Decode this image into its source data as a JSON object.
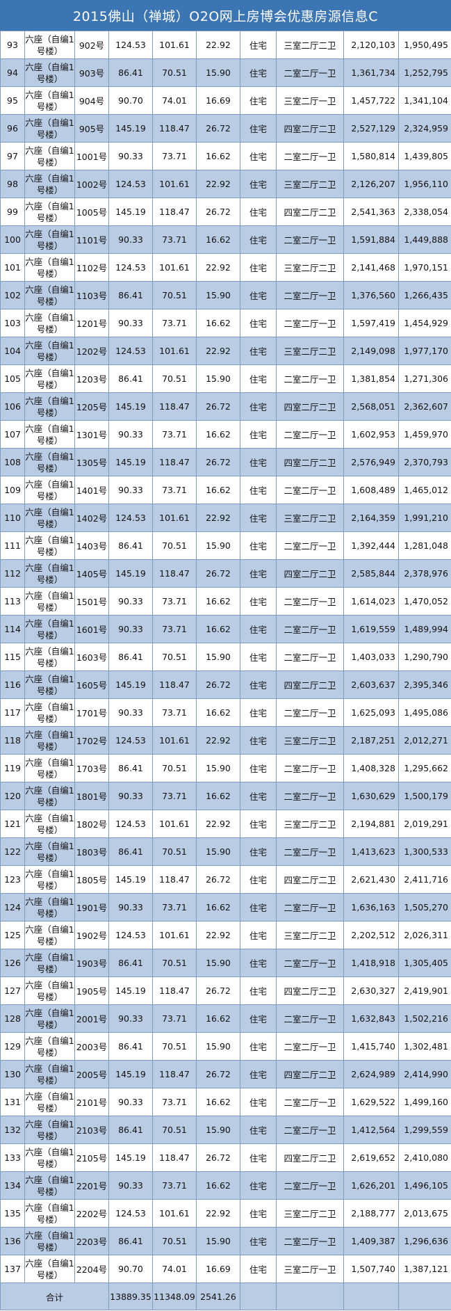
{
  "title": "2015佛山（禅城）O2O网上房博会优惠房源信息C",
  "building": "六座（自编1号楼）",
  "use": "住宅",
  "rows": [
    {
      "no": "93",
      "unit": "902号",
      "area": "124.53",
      "inner": "101.61",
      "share": "22.92",
      "layout": "三室二厅二卫",
      "orig": "2,120,103",
      "disc": "1,950,495"
    },
    {
      "no": "94",
      "unit": "903号",
      "area": "86.41",
      "inner": "70.51",
      "share": "15.90",
      "layout": "二室二厅一卫",
      "orig": "1,361,734",
      "disc": "1,252,795"
    },
    {
      "no": "95",
      "unit": "904号",
      "area": "90.70",
      "inner": "74.01",
      "share": "16.69",
      "layout": "三室二厅一卫",
      "orig": "1,457,722",
      "disc": "1,341,104"
    },
    {
      "no": "96",
      "unit": "905号",
      "area": "145.19",
      "inner": "118.47",
      "share": "26.72",
      "layout": "四室二厅二卫",
      "orig": "2,527,129",
      "disc": "2,324,959"
    },
    {
      "no": "97",
      "unit": "1001号",
      "area": "90.33",
      "inner": "73.71",
      "share": "16.62",
      "layout": "二室二厅一卫",
      "orig": "1,580,814",
      "disc": "1,439,805"
    },
    {
      "no": "98",
      "unit": "1002号",
      "area": "124.53",
      "inner": "101.61",
      "share": "22.92",
      "layout": "三室二厅二卫",
      "orig": "2,126,207",
      "disc": "1,956,110"
    },
    {
      "no": "99",
      "unit": "1005号",
      "area": "145.19",
      "inner": "118.47",
      "share": "26.72",
      "layout": "四室二厅二卫",
      "orig": "2,541,363",
      "disc": "2,338,054"
    },
    {
      "no": "100",
      "unit": "1101号",
      "area": "90.33",
      "inner": "73.71",
      "share": "16.62",
      "layout": "二室二厅一卫",
      "orig": "1,591,884",
      "disc": "1,449,888"
    },
    {
      "no": "101",
      "unit": "1102号",
      "area": "124.53",
      "inner": "101.61",
      "share": "22.92",
      "layout": "三室二厅二卫",
      "orig": "2,141,468",
      "disc": "1,970,151"
    },
    {
      "no": "102",
      "unit": "1103号",
      "area": "86.41",
      "inner": "70.51",
      "share": "15.90",
      "layout": "二室二厅一卫",
      "orig": "1,376,560",
      "disc": "1,266,435"
    },
    {
      "no": "103",
      "unit": "1201号",
      "area": "90.33",
      "inner": "73.71",
      "share": "16.62",
      "layout": "二室二厅一卫",
      "orig": "1,597,419",
      "disc": "1,454,929"
    },
    {
      "no": "104",
      "unit": "1202号",
      "area": "124.53",
      "inner": "101.61",
      "share": "22.92",
      "layout": "三室二厅二卫",
      "orig": "2,149,098",
      "disc": "1,977,170"
    },
    {
      "no": "105",
      "unit": "1203号",
      "area": "86.41",
      "inner": "70.51",
      "share": "15.90",
      "layout": "二室二厅一卫",
      "orig": "1,381,854",
      "disc": "1,271,306"
    },
    {
      "no": "106",
      "unit": "1205号",
      "area": "145.19",
      "inner": "118.47",
      "share": "26.72",
      "layout": "四室二厅二卫",
      "orig": "2,568,051",
      "disc": "2,362,607"
    },
    {
      "no": "107",
      "unit": "1301号",
      "area": "90.33",
      "inner": "73.71",
      "share": "16.62",
      "layout": "二室二厅一卫",
      "orig": "1,602,953",
      "disc": "1,459,970"
    },
    {
      "no": "108",
      "unit": "1305号",
      "area": "145.19",
      "inner": "118.47",
      "share": "26.72",
      "layout": "四室二厅二卫",
      "orig": "2,576,949",
      "disc": "2,370,793"
    },
    {
      "no": "109",
      "unit": "1401号",
      "area": "90.33",
      "inner": "73.71",
      "share": "16.62",
      "layout": "二室二厅一卫",
      "orig": "1,608,489",
      "disc": "1,465,012"
    },
    {
      "no": "110",
      "unit": "1402号",
      "area": "124.53",
      "inner": "101.61",
      "share": "22.92",
      "layout": "三室二厅二卫",
      "orig": "2,164,359",
      "disc": "1,991,210"
    },
    {
      "no": "111",
      "unit": "1403号",
      "area": "86.41",
      "inner": "70.51",
      "share": "15.90",
      "layout": "二室二厅一卫",
      "orig": "1,392,444",
      "disc": "1,281,048"
    },
    {
      "no": "112",
      "unit": "1405号",
      "area": "145.19",
      "inner": "118.47",
      "share": "26.72",
      "layout": "四室二厅二卫",
      "orig": "2,585,844",
      "disc": "2,378,976"
    },
    {
      "no": "113",
      "unit": "1501号",
      "area": "90.33",
      "inner": "73.71",
      "share": "16.62",
      "layout": "二室二厅一卫",
      "orig": "1,614,023",
      "disc": "1,470,052"
    },
    {
      "no": "114",
      "unit": "1601号",
      "area": "90.33",
      "inner": "73.71",
      "share": "16.62",
      "layout": "二室二厅一卫",
      "orig": "1,619,559",
      "disc": "1,489,994"
    },
    {
      "no": "115",
      "unit": "1603号",
      "area": "86.41",
      "inner": "70.51",
      "share": "15.90",
      "layout": "二室二厅一卫",
      "orig": "1,403,033",
      "disc": "1,290,790"
    },
    {
      "no": "116",
      "unit": "1605号",
      "area": "145.19",
      "inner": "118.47",
      "share": "26.72",
      "layout": "四室二厅二卫",
      "orig": "2,603,637",
      "disc": "2,395,346"
    },
    {
      "no": "117",
      "unit": "1701号",
      "area": "90.33",
      "inner": "73.71",
      "share": "16.62",
      "layout": "二室二厅一卫",
      "orig": "1,625,093",
      "disc": "1,495,086"
    },
    {
      "no": "118",
      "unit": "1702号",
      "area": "124.53",
      "inner": "101.61",
      "share": "22.92",
      "layout": "三室二厅二卫",
      "orig": "2,187,251",
      "disc": "2,012,271"
    },
    {
      "no": "119",
      "unit": "1703号",
      "area": "86.41",
      "inner": "70.51",
      "share": "15.90",
      "layout": "二室二厅一卫",
      "orig": "1,408,328",
      "disc": "1,295,662"
    },
    {
      "no": "120",
      "unit": "1801号",
      "area": "90.33",
      "inner": "73.71",
      "share": "16.62",
      "layout": "二室二厅一卫",
      "orig": "1,630,629",
      "disc": "1,500,179"
    },
    {
      "no": "121",
      "unit": "1802号",
      "area": "124.53",
      "inner": "101.61",
      "share": "22.92",
      "layout": "三室二厅二卫",
      "orig": "2,194,881",
      "disc": "2,019,291"
    },
    {
      "no": "122",
      "unit": "1803号",
      "area": "86.41",
      "inner": "70.51",
      "share": "15.90",
      "layout": "二室二厅一卫",
      "orig": "1,413,623",
      "disc": "1,300,533"
    },
    {
      "no": "123",
      "unit": "1805号",
      "area": "145.19",
      "inner": "118.47",
      "share": "26.72",
      "layout": "四室二厅二卫",
      "orig": "2,621,430",
      "disc": "2,411,716"
    },
    {
      "no": "124",
      "unit": "1901号",
      "area": "90.33",
      "inner": "73.71",
      "share": "16.62",
      "layout": "二室二厅一卫",
      "orig": "1,636,163",
      "disc": "1,505,270"
    },
    {
      "no": "125",
      "unit": "1902号",
      "area": "124.53",
      "inner": "101.61",
      "share": "22.92",
      "layout": "三室二厅二卫",
      "orig": "2,202,512",
      "disc": "2,026,311"
    },
    {
      "no": "126",
      "unit": "1903号",
      "area": "86.41",
      "inner": "70.51",
      "share": "15.90",
      "layout": "二室二厅一卫",
      "orig": "1,418,918",
      "disc": "1,305,405"
    },
    {
      "no": "127",
      "unit": "1905号",
      "area": "145.19",
      "inner": "118.47",
      "share": "26.72",
      "layout": "四室二厅二卫",
      "orig": "2,630,327",
      "disc": "2,419,901"
    },
    {
      "no": "128",
      "unit": "2001号",
      "area": "90.33",
      "inner": "73.71",
      "share": "16.62",
      "layout": "二室二厅一卫",
      "orig": "1,632,843",
      "disc": "1,502,216"
    },
    {
      "no": "129",
      "unit": "2003号",
      "area": "86.41",
      "inner": "70.51",
      "share": "15.90",
      "layout": "二室二厅一卫",
      "orig": "1,415,740",
      "disc": "1,302,481"
    },
    {
      "no": "130",
      "unit": "2005号",
      "area": "145.19",
      "inner": "118.47",
      "share": "26.72",
      "layout": "四室二厅二卫",
      "orig": "2,624,989",
      "disc": "2,414,990"
    },
    {
      "no": "131",
      "unit": "2101号",
      "area": "90.33",
      "inner": "73.71",
      "share": "16.62",
      "layout": "二室二厅一卫",
      "orig": "1,629,522",
      "disc": "1,499,160"
    },
    {
      "no": "132",
      "unit": "2103号",
      "area": "86.41",
      "inner": "70.51",
      "share": "15.90",
      "layout": "二室二厅一卫",
      "orig": "1,412,564",
      "disc": "1,299,559"
    },
    {
      "no": "133",
      "unit": "2105号",
      "area": "145.19",
      "inner": "118.47",
      "share": "26.72",
      "layout": "四室二厅二卫",
      "orig": "2,619,652",
      "disc": "2,410,080"
    },
    {
      "no": "134",
      "unit": "2201号",
      "area": "90.33",
      "inner": "73.71",
      "share": "16.62",
      "layout": "二室二厅一卫",
      "orig": "1,626,201",
      "disc": "1,496,105"
    },
    {
      "no": "135",
      "unit": "2202号",
      "area": "124.53",
      "inner": "101.61",
      "share": "22.92",
      "layout": "三室二厅二卫",
      "orig": "2,188,777",
      "disc": "2,013,675"
    },
    {
      "no": "136",
      "unit": "2203号",
      "area": "86.41",
      "inner": "70.51",
      "share": "15.90",
      "layout": "二室二厅一卫",
      "orig": "1,409,387",
      "disc": "1,296,636"
    },
    {
      "no": "137",
      "unit": "2204号",
      "area": "90.70",
      "inner": "74.01",
      "share": "16.69",
      "layout": "三室二厅一卫",
      "orig": "1,507,740",
      "disc": "1,387,121"
    }
  ],
  "total": {
    "label": "合计",
    "area": "13889.35",
    "inner": "11348.09",
    "share": "2541.26"
  }
}
